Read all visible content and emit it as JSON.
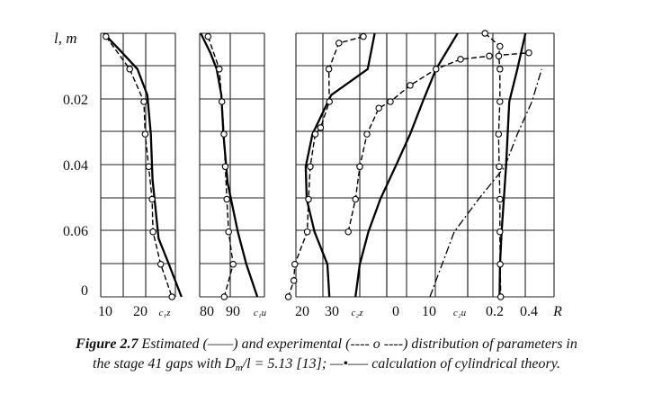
{
  "chart_data": {
    "type": "line",
    "ylabel": "l, m",
    "ylim": [
      0,
      0.08
    ],
    "yticks": [
      "0",
      "0.02",
      "0.04",
      "0.06"
    ],
    "grid": true,
    "panels": [
      {
        "id": "c1z",
        "xticks": [
          "10",
          "20"
        ],
        "xlabel": "c₁z",
        "series": [
          {
            "style": "estimated",
            "points": [
              [
                10.7,
                0.081
              ],
              [
                15.0,
                0.075
              ],
              [
                18.5,
                0.07
              ],
              [
                20.8,
                0.062
              ],
              [
                21.6,
                0.05
              ],
              [
                22.0,
                0.036
              ],
              [
                23.4,
                0.018
              ],
              [
                25.8,
                0.01
              ],
              [
                28.7,
                0.0
              ]
            ]
          },
          {
            "style": "experimental",
            "points": [
              [
                11.2,
                0.08
              ],
              [
                16.7,
                0.07
              ],
              [
                20.0,
                0.06
              ],
              [
                20.3,
                0.05
              ],
              [
                21.1,
                0.04
              ],
              [
                21.9,
                0.03
              ],
              [
                22.1,
                0.02
              ],
              [
                23.9,
                0.01
              ],
              [
                26.5,
                0.0
              ]
            ]
          }
        ]
      },
      {
        "id": "c1u",
        "xticks": [
          "80",
          "90"
        ],
        "xlabel": "c₁u",
        "series": [
          {
            "style": "estimated",
            "points": [
              [
                78.0,
                0.081
              ],
              [
                81.7,
                0.075
              ],
              [
                84.1,
                0.07
              ],
              [
                85.9,
                0.062
              ],
              [
                86.7,
                0.05
              ],
              [
                88.3,
                0.035
              ],
              [
                92.2,
                0.02
              ],
              [
                95.5,
                0.01
              ],
              [
                99.7,
                0.0
              ]
            ]
          },
          {
            "style": "experimental",
            "points": [
              [
                80.8,
                0.08
              ],
              [
                85.1,
                0.07
              ],
              [
                86.1,
                0.06
              ],
              [
                86.9,
                0.05
              ],
              [
                87.4,
                0.04
              ],
              [
                88.0,
                0.03
              ],
              [
                88.7,
                0.02
              ],
              [
                90.4,
                0.01
              ],
              [
                87.0,
                0.0
              ]
            ]
          }
        ]
      },
      {
        "id": "c2z",
        "xticks": [
          "20",
          "30"
        ],
        "xlabel": "c₂z",
        "series": [
          {
            "style": "estimated",
            "points": [
              [
                47.0,
                0.081
              ],
              [
                44.2,
                0.07
              ],
              [
                29.7,
                0.062
              ],
              [
                22.3,
                0.05
              ],
              [
                19.6,
                0.04
              ],
              [
                20.0,
                0.03
              ],
              [
                23.1,
                0.02
              ],
              [
                28.2,
                0.01
              ],
              [
                29.0,
                0.0
              ]
            ]
          },
          {
            "style": "experimental",
            "points": [
              [
                42.5,
                0.08
              ],
              [
                32.8,
                0.078
              ],
              [
                28.8,
                0.07
              ],
              [
                29.0,
                0.06
              ],
              [
                25.5,
                0.052
              ],
              [
                23.4,
                0.05
              ],
              [
                21.4,
                0.04
              ],
              [
                20.7,
                0.03
              ],
              [
                20.2,
                0.02
              ],
              [
                15.3,
                0.01
              ],
              [
                14.9,
                0.005
              ],
              [
                12.7,
                0.0
              ]
            ]
          }
        ]
      },
      {
        "id": "c2u",
        "xticks": [
          "0",
          "10"
        ],
        "xlabel": "c₂u",
        "series": [
          {
            "style": "estimated",
            "points": [
              [
                -12.2,
                0.0
              ],
              [
                -11.0,
                0.01
              ],
              [
                -8.6,
                0.02
              ],
              [
                -5.3,
                0.03
              ],
              [
                -1.1,
                0.04
              ],
              [
                3.0,
                0.05
              ],
              [
                6.5,
                0.06
              ],
              [
                10.2,
                0.07
              ],
              [
                16.2,
                0.081
              ]
            ]
          },
          {
            "style": "experimental",
            "points": [
              [
                -14.2,
                0.02
              ],
              [
                -12.2,
                0.03
              ],
              [
                -11.0,
                0.04
              ],
              [
                -9.0,
                0.05
              ],
              [
                -5.7,
                0.058
              ],
              [
                -2.5,
                0.06
              ],
              [
                3.0,
                0.065
              ],
              [
                10.2,
                0.07
              ],
              [
                17.0,
                0.073
              ],
              [
                25.0,
                0.074
              ],
              [
                36.0,
                0.075
              ]
            ]
          }
        ]
      },
      {
        "id": "R",
        "xticks": [
          "0.2",
          "0.4"
        ],
        "xlabel": "R",
        "series": [
          {
            "style": "estimated",
            "points": [
              [
                0.23,
                0.0
              ],
              [
                0.233,
                0.01
              ],
              [
                0.243,
                0.02
              ],
              [
                0.27,
                0.04
              ],
              [
                0.29,
                0.06
              ],
              [
                0.34,
                0.07
              ],
              [
                0.39,
                0.081
              ]
            ]
          },
          {
            "style": "experimental",
            "points": [
              [
                0.14,
                0.081
              ],
              [
                0.232,
                0.077
              ],
              [
                0.225,
                0.074
              ],
              [
                0.232,
                0.07
              ],
              [
                0.232,
                0.06
              ],
              [
                0.224,
                0.05
              ],
              [
                0.228,
                0.04
              ],
              [
                0.232,
                0.03
              ],
              [
                0.232,
                0.02
              ],
              [
                0.234,
                0.01
              ],
              [
                0.237,
                0.0
              ]
            ]
          },
          {
            "style": "cylindrical",
            "points": [
              [
                -0.2,
                0.0
              ],
              [
                -0.05,
                0.02
              ],
              [
                0.1,
                0.03
              ],
              [
                0.262,
                0.04
              ],
              [
                0.34,
                0.05
              ],
              [
                0.43,
                0.06
              ],
              [
                0.49,
                0.07
              ]
            ]
          }
        ]
      }
    ]
  },
  "caption": {
    "label": "Figure 2.7",
    "line1_pre": "Estimated (",
    "estimated_marker": "——",
    "line1_mid": ") and experimental (",
    "experimental_marker": "---- o ----",
    "line1_post": ") distribution of parameters in",
    "line2_pre": "the stage 41 gaps with",
    "ratio_D": "D",
    "ratio_sub": "m",
    "ratio_rest": "/l = 5.13",
    "reference": "[13];",
    "cylindrical_marker": "—•—–",
    "line2_post": "calculation of cylindrical theory."
  }
}
